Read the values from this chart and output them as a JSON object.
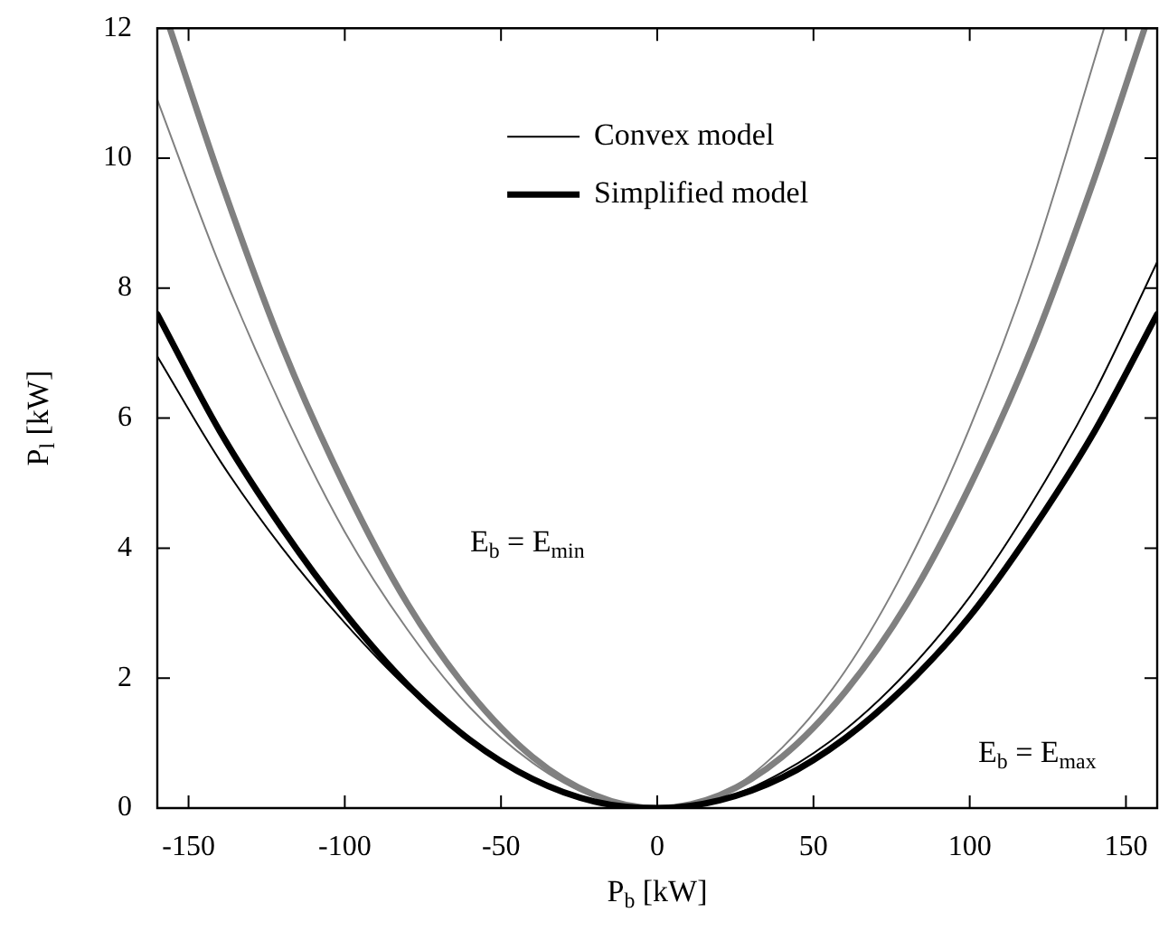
{
  "chart_data": {
    "type": "line",
    "xlabel": "P$_{b}$ [kW]",
    "ylabel": "P$_{l}$ [kW]",
    "xlim": [
      -160,
      160
    ],
    "xticks": [
      -150,
      -100,
      -50,
      0,
      50,
      100,
      150
    ],
    "ylim": [
      0,
      12
    ],
    "yticks": [
      0,
      2,
      4,
      6,
      8,
      10,
      12
    ],
    "grid": false,
    "legend": "top",
    "marker": "none",
    "line_style": "solid",
    "series": [
      {
        "name": "Convex model",
        "color": "#000000",
        "x": [
          -160,
          -140,
          -120,
          -100,
          -80,
          -60,
          -40,
          -20,
          0,
          20,
          40,
          60,
          80,
          100,
          120,
          140,
          160
        ],
        "values": [
          6.95,
          5.35,
          4.0,
          2.85,
          1.85,
          1.05,
          0.45,
          0.1,
          0,
          0.13,
          0.55,
          1.2,
          2.1,
          3.25,
          4.7,
          6.4,
          8.4
        ]
      },
      {
        "name": "Simplified model",
        "color": "#000000",
        "x": [
          -160,
          -140,
          -120,
          -100,
          -80,
          -60,
          -40,
          -20,
          0,
          20,
          40,
          60,
          80,
          100,
          120,
          140,
          160
        ],
        "values": [
          7.6,
          5.8,
          4.3,
          3.0,
          1.9,
          1.05,
          0.45,
          0.1,
          0,
          0.12,
          0.47,
          1.07,
          1.9,
          2.95,
          4.28,
          5.8,
          7.6
        ]
      },
      {
        "color": "#808080",
        "x": [
          -160,
          -140,
          -120,
          -100,
          -80,
          -60,
          -40,
          -20,
          0,
          20,
          40,
          60,
          80,
          100,
          120,
          143
        ],
        "values": [
          10.9,
          8.35,
          6.15,
          4.25,
          2.75,
          1.55,
          0.7,
          0.17,
          0,
          0.2,
          0.93,
          2.1,
          3.75,
          5.85,
          8.4,
          12
        ]
      },
      {
        "color": "#808080",
        "x": [
          -156,
          -140,
          -120,
          -100,
          -80,
          -60,
          -40,
          -20,
          0,
          20,
          40,
          60,
          80,
          100,
          120,
          140,
          156
        ],
        "values": [
          12,
          9.7,
          7.1,
          4.95,
          3.15,
          1.78,
          0.79,
          0.2,
          0,
          0.2,
          0.79,
          1.78,
          3.15,
          4.95,
          7.1,
          9.7,
          12
        ]
      }
    ],
    "annotations": [
      "E$_{b}$ = E$_{min}$",
      "E$_{b}$ = E$_{max}$"
    ]
  }
}
